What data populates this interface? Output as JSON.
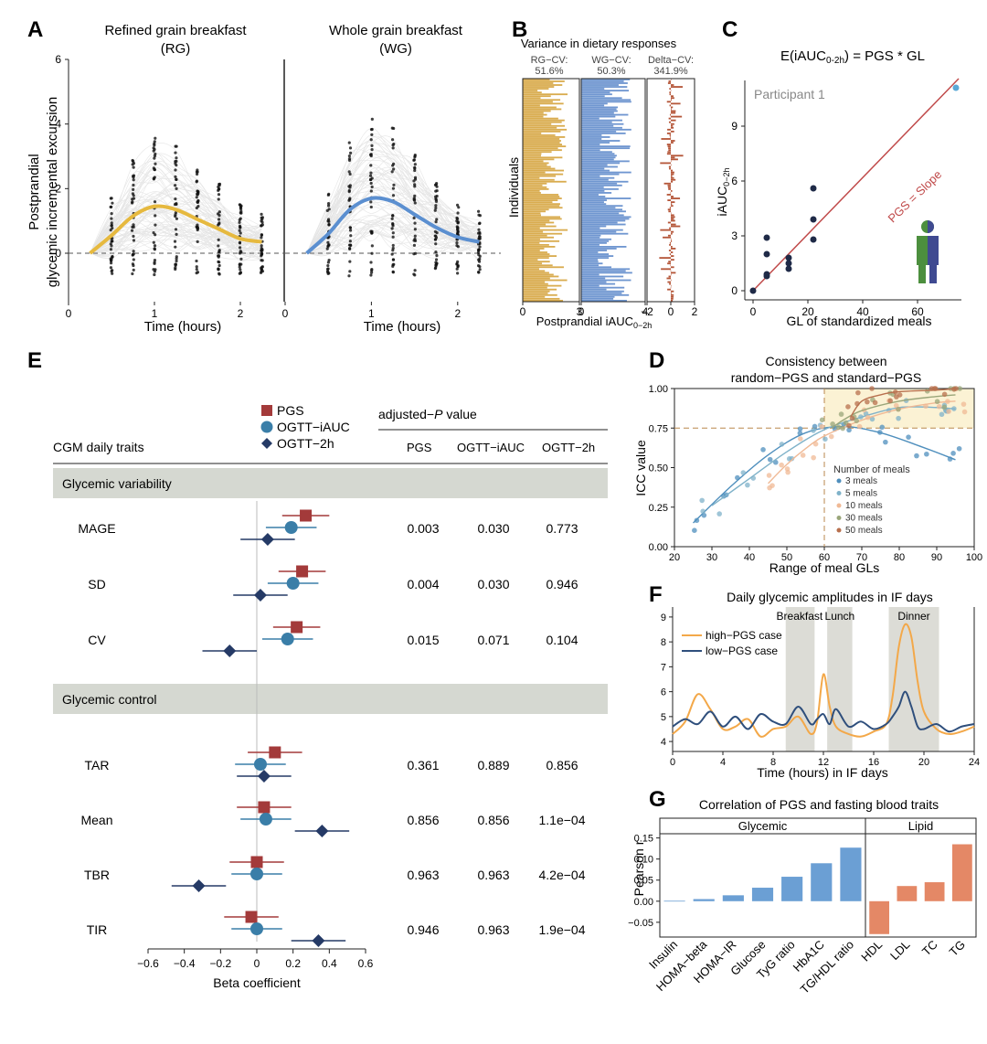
{
  "panels": {
    "A": {
      "label": "A",
      "left_title_1": "Refined grain breakfast",
      "left_title_2": "(RG)",
      "right_title_1": "Whole grain breakfast",
      "right_title_2": "(WG)",
      "ylabel_1": "Postprandial",
      "ylabel_2": "glycemic incremental excursion",
      "xlabel": "Time (hours)",
      "yticks": [
        "0",
        "2",
        "4",
        "6"
      ],
      "xticks": [
        "0",
        "1",
        "2"
      ],
      "colors": {
        "RG": "#e6b93f",
        "WG": "#5b8fd0"
      }
    },
    "B": {
      "label": "B",
      "title": "Variance in dietary responses",
      "col1": [
        "RG−CV:",
        "51.6%"
      ],
      "col2": [
        "WG−CV:",
        "50.3%"
      ],
      "col3": [
        "Delta−CV:",
        "341.9%"
      ],
      "ylabel": "Individuals",
      "xlabel": "Postprandial iAUC",
      "xlabel_sub": "0−2h",
      "xticks1": [
        "0",
        "3"
      ],
      "xticks2": [
        "0",
        "4"
      ],
      "xticks3": [
        "−2",
        "0",
        "2"
      ],
      "colors": {
        "RG": "#d9ac4f",
        "WG": "#6f96d0",
        "Delta": "#b5573a"
      }
    },
    "C": {
      "label": "C",
      "title_pre": "E(iAUC",
      "title_sub": "0-2h",
      "title_post": ") = PGS * GL",
      "participant": "Participant 1",
      "slope_label": "PGS = Slope",
      "ylabel": "iAUC",
      "ylabel_sub": "0−2h",
      "xlabel": "GL of standardized meals",
      "xticks": [
        "0",
        "20",
        "40",
        "60"
      ],
      "yticks": [
        "0",
        "3",
        "6",
        "9"
      ],
      "line_color": "#c04a4a"
    },
    "D": {
      "label": "D",
      "title_1": "Consistency between",
      "title_2": "random−PGS and standard−PGS",
      "ylabel": "ICC value",
      "xlabel": "Range of meal GLs",
      "legend_title": "Number of meals",
      "xticks": [
        "20",
        "30",
        "40",
        "50",
        "60",
        "70",
        "80",
        "90",
        "100"
      ],
      "yticks": [
        "0.00",
        "0.25",
        "0.50",
        "0.75",
        "1.00"
      ]
    },
    "E": {
      "label": "E",
      "section_header": "CGM daily traits",
      "pvalue_header_pre": "adjusted−",
      "pvalue_header_p": "P",
      "pvalue_header_post": " value",
      "col_pgs": "PGS",
      "col_ogtt_iauc": "OGTT−iAUC",
      "col_ogtt_2h": "OGTT−2h",
      "legend": [
        "PGS",
        "OGTT−iAUC",
        "OGTT−2h"
      ],
      "group_variability": "Glycemic variability",
      "group_control": "Glycemic control",
      "xlabel": "Beta coefficient",
      "xticks": [
        "−0.6",
        "−0.4",
        "−0.2",
        "0",
        "0.2",
        "0.4",
        "0.6"
      ],
      "colors": {
        "PGS": "#a33a3a",
        "OGTT_iAUC": "#3a7ea8",
        "OGTT_2h": "#253a66"
      }
    },
    "F": {
      "label": "F",
      "title": "Daily glycemic amplitudes in IF days",
      "meal_breakfast": "Breakfast",
      "meal_lunch": "Lunch",
      "meal_dinner": "Dinner",
      "legend_high": "high−PGS case",
      "legend_low": "low−PGS case",
      "xlabel": "Time (hours) in IF days",
      "xticks": [
        "0",
        "4",
        "8",
        "12",
        "16",
        "20",
        "24"
      ],
      "yticks": [
        "4",
        "5",
        "6",
        "7",
        "8",
        "9"
      ],
      "colors": {
        "high": "#f3a849",
        "low": "#2f4f7c"
      }
    },
    "G": {
      "label": "G",
      "title": "Correlation of PGS and fasting blood traits",
      "group_glycemic": "Glycemic",
      "group_lipid": "Lipid",
      "ylabel": "Pearson r",
      "yticks": [
        "−0.05",
        "0.00",
        "0.05",
        "0.10",
        "0.15"
      ],
      "colors": {
        "glycemic": "#6b9fd4",
        "lipid": "#e48866"
      }
    }
  },
  "chart_data": [
    {
      "panel": "A",
      "type": "line",
      "series": [
        {
          "name": "RG",
          "x": [
            0.25,
            0.5,
            0.75,
            1.0,
            1.25,
            1.5,
            1.75,
            2.0,
            2.25
          ],
          "values": [
            0.0,
            0.55,
            1.15,
            1.45,
            1.35,
            1.05,
            0.75,
            0.45,
            0.35
          ]
        },
        {
          "name": "WG",
          "x": [
            0.25,
            0.5,
            0.75,
            1.0,
            1.25,
            1.5,
            1.75,
            2.0,
            2.25
          ],
          "values": [
            0.0,
            0.6,
            1.35,
            1.7,
            1.6,
            1.2,
            0.8,
            0.5,
            0.35
          ]
        }
      ],
      "xlim": [
        0,
        2.5
      ],
      "ylim": [
        -1.5,
        6
      ]
    },
    {
      "panel": "C",
      "type": "scatter",
      "x": [
        0,
        5,
        5,
        5,
        5,
        13,
        13,
        13,
        22,
        22,
        22,
        74
      ],
      "values": [
        0.0,
        0.8,
        0.9,
        2.0,
        2.9,
        1.2,
        1.5,
        1.8,
        2.8,
        3.9,
        5.6,
        11.1
      ],
      "xlim": [
        -3,
        76
      ],
      "ylim": [
        -0.5,
        11.5
      ]
    },
    {
      "panel": "D",
      "type": "line",
      "series": [
        {
          "name": "3 meals",
          "x": [
            25,
            35,
            45,
            55,
            65,
            75,
            85,
            95
          ],
          "values": [
            0.15,
            0.38,
            0.58,
            0.72,
            0.76,
            0.72,
            0.64,
            0.55
          ]
        },
        {
          "name": "5 meals",
          "x": [
            30,
            40,
            50,
            60,
            70,
            80,
            90,
            95
          ],
          "values": [
            0.26,
            0.43,
            0.6,
            0.74,
            0.82,
            0.88,
            0.88,
            0.87
          ]
        },
        {
          "name": "10 meals",
          "x": [
            45,
            50,
            55,
            60,
            70,
            80,
            90,
            95
          ],
          "values": [
            0.4,
            0.52,
            0.62,
            0.7,
            0.8,
            0.87,
            0.91,
            0.92
          ]
        },
        {
          "name": "30 meals",
          "x": [
            62,
            65,
            70,
            80,
            90,
            95
          ],
          "values": [
            0.75,
            0.8,
            0.86,
            0.92,
            0.95,
            0.96
          ]
        },
        {
          "name": "50 meals",
          "x": [
            67,
            70,
            75,
            80,
            90,
            95
          ],
          "values": [
            0.82,
            0.92,
            0.96,
            0.98,
            0.99,
            1.0
          ]
        }
      ],
      "xlim": [
        20,
        100
      ],
      "ylim": [
        0,
        1.0
      ]
    },
    {
      "panel": "E",
      "type": "scatter",
      "categories": [
        "MAGE",
        "SD",
        "CV",
        "TAR",
        "Mean",
        "TBR",
        "TIR"
      ],
      "series": [
        {
          "name": "PGS",
          "values": [
            0.27,
            0.25,
            0.22,
            0.1,
            0.04,
            0.0,
            -0.03
          ],
          "ci": [
            [
              0.14,
              0.4
            ],
            [
              0.12,
              0.38
            ],
            [
              0.09,
              0.35
            ],
            [
              -0.05,
              0.25
            ],
            [
              -0.11,
              0.19
            ],
            [
              -0.15,
              0.15
            ],
            [
              -0.18,
              0.12
            ]
          ]
        },
        {
          "name": "OGTT−iAUC",
          "values": [
            0.19,
            0.2,
            0.17,
            0.02,
            0.05,
            0.0,
            0.0
          ],
          "ci": [
            [
              0.05,
              0.33
            ],
            [
              0.06,
              0.34
            ],
            [
              0.03,
              0.31
            ],
            [
              -0.12,
              0.16
            ],
            [
              -0.09,
              0.19
            ],
            [
              -0.14,
              0.14
            ],
            [
              -0.14,
              0.14
            ]
          ]
        },
        {
          "name": "OGTT−2h",
          "values": [
            0.06,
            0.02,
            -0.15,
            0.04,
            0.36,
            -0.32,
            0.34
          ],
          "ci": [
            [
              -0.09,
              0.21
            ],
            [
              -0.13,
              0.17
            ],
            [
              -0.3,
              0.0
            ],
            [
              -0.11,
              0.19
            ],
            [
              0.21,
              0.51
            ],
            [
              -0.47,
              -0.17
            ],
            [
              0.19,
              0.49
            ]
          ]
        }
      ],
      "p_values": {
        "PGS": [
          "0.003",
          "0.004",
          "0.015",
          "0.361",
          "0.856",
          "0.963",
          "0.946"
        ],
        "OGTT−iAUC": [
          "0.030",
          "0.030",
          "0.071",
          "0.889",
          "0.856",
          "0.963",
          "0.963"
        ],
        "OGTT−2h": [
          "0.773",
          "0.946",
          "0.104",
          "0.856",
          "1.1e−04",
          "4.2e−04",
          "1.9e−04"
        ]
      },
      "xlim": [
        -0.6,
        0.6
      ]
    },
    {
      "panel": "F",
      "type": "line",
      "series": [
        {
          "name": "high−PGS case",
          "x": [
            0,
            1,
            2,
            3,
            4,
            5,
            6,
            7,
            8,
            9,
            10,
            11,
            11.5,
            12,
            12.5,
            13,
            14,
            15,
            16,
            17,
            17.5,
            18,
            18.5,
            19,
            19.5,
            20,
            21,
            22,
            23,
            24
          ],
          "values": [
            4.3,
            4.8,
            5.9,
            5.3,
            4.5,
            4.6,
            4.9,
            4.2,
            4.5,
            4.6,
            5.0,
            4.3,
            4.8,
            6.7,
            5.4,
            4.6,
            4.3,
            4.2,
            4.4,
            4.7,
            5.8,
            7.8,
            8.7,
            8.2,
            6.4,
            5.2,
            4.5,
            4.3,
            4.4,
            4.6
          ]
        },
        {
          "name": "low−PGS case",
          "x": [
            0,
            1,
            2,
            3,
            4,
            5,
            6,
            7,
            8,
            9,
            10,
            11,
            11.5,
            12,
            12.5,
            13,
            14,
            15,
            16,
            17,
            17.5,
            18,
            18.5,
            19,
            19.5,
            20,
            21,
            22,
            23,
            24
          ],
          "values": [
            4.6,
            4.9,
            4.7,
            5.2,
            4.6,
            5.0,
            4.5,
            5.1,
            4.8,
            4.7,
            5.4,
            4.7,
            4.9,
            5.1,
            4.7,
            5.3,
            4.6,
            4.8,
            4.5,
            4.7,
            5.0,
            5.4,
            6.0,
            5.4,
            4.6,
            4.5,
            4.7,
            4.4,
            4.6,
            4.7
          ]
        }
      ],
      "meal_windows": [
        [
          9,
          11.3
        ],
        [
          12.3,
          14.3
        ],
        [
          17.2,
          21.2
        ]
      ],
      "xlim": [
        0,
        24
      ],
      "ylim": [
        3.6,
        9.4
      ]
    },
    {
      "panel": "G",
      "type": "bar",
      "categories": [
        "Insulin",
        "HOMA−beta",
        "HOMA−IR",
        "Glucose",
        "TyG ratio",
        "HbA1C",
        "TG/HDL ratio",
        "HDL",
        "LDL",
        "TC",
        "TG"
      ],
      "groups": [
        "Glycemic",
        "Glycemic",
        "Glycemic",
        "Glycemic",
        "Glycemic",
        "Glycemic",
        "Glycemic",
        "Lipid",
        "Lipid",
        "Lipid",
        "Lipid"
      ],
      "values": [
        0.001,
        0.005,
        0.014,
        0.032,
        0.058,
        0.09,
        0.127,
        -0.078,
        0.036,
        0.045,
        0.135
      ],
      "ylim": [
        -0.085,
        0.16
      ]
    }
  ]
}
